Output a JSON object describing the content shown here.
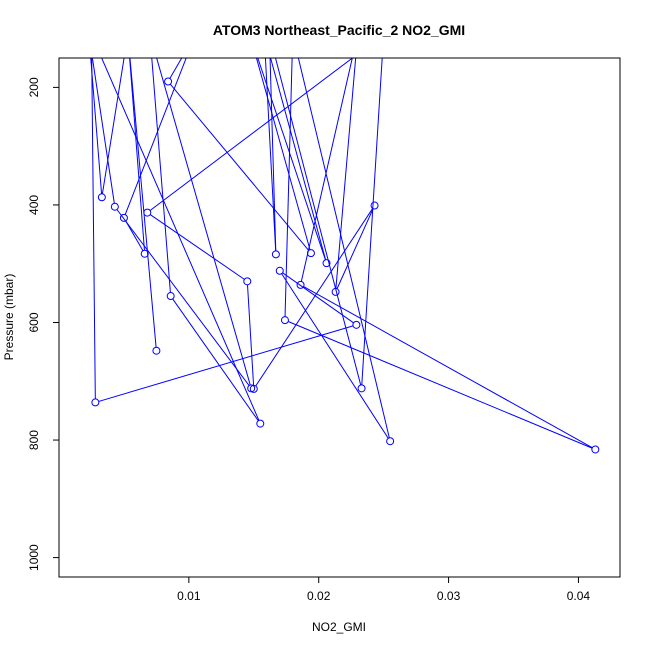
{
  "chart_data": {
    "type": "line",
    "title": "ATOM3 Northeast_Pacific_2 NO2_GMI",
    "xlabel": "NO2_GMI",
    "ylabel": "Pressure (mbar)",
    "xlim": [
      0,
      0.0432
    ],
    "ylim": [
      1033,
      150
    ],
    "y_reversed": true,
    "xticks": [
      0.01,
      0.02,
      0.03,
      0.04
    ],
    "xtick_labels": [
      "0.01",
      "0.02",
      "0.03",
      "0.04"
    ],
    "yticks": [
      200,
      400,
      600,
      800,
      1000
    ],
    "ytick_labels": [
      "200",
      "400",
      "600",
      "800",
      "1000"
    ],
    "grid": false,
    "color": "#0000ff",
    "series": [
      {
        "x": [
          0.0075,
          0.0053,
          0.0033,
          0.0023,
          0.0043,
          0.0148,
          0.007,
          0.0086,
          0.0155,
          0.0025,
          0.0028,
          0.0229,
          0.017,
          0.0255,
          0.018,
          0.0174,
          0.0413,
          0.0186,
          0.023,
          0.0213,
          0.0243,
          0.015,
          0.0145,
          0.0068,
          0.025,
          0.0233,
          0.0162,
          0.0167,
          0.0158,
          0.0206,
          0.0147,
          0.0194,
          0.0084,
          0.0105,
          0.005,
          0.0066,
          0.0053
        ],
        "y": [
          648,
          110,
          387,
          110,
          403,
          712,
          110,
          555,
          772,
          110,
          736,
          604,
          512,
          802,
          110,
          596,
          816,
          536,
          110,
          548,
          401,
          713,
          530,
          413,
          110,
          712,
          110,
          484,
          110,
          499,
          110,
          482,
          190,
          110,
          422,
          483,
          110
        ]
      }
    ]
  }
}
